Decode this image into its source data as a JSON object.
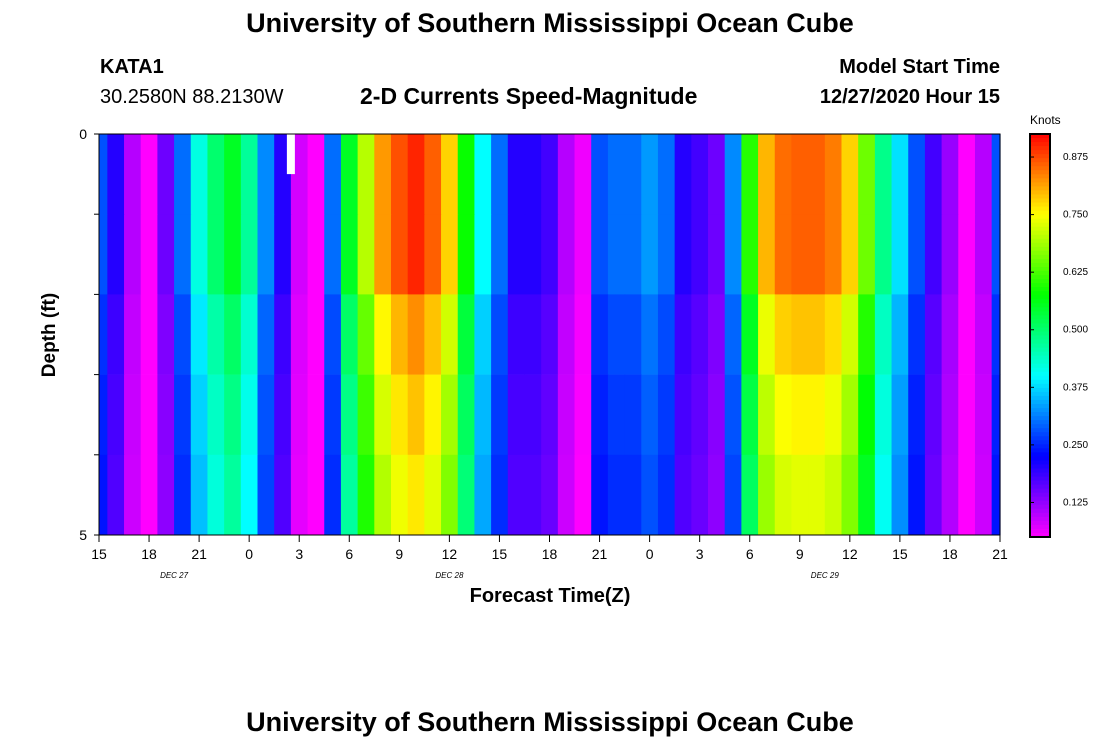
{
  "header": {
    "title": "University of Southern Mississippi Ocean Cube",
    "station": "KATA1",
    "coordinates": "30.2580N 88.2130W",
    "subtitle": "2-D Currents Speed-Magnitude",
    "model_start_label": "Model Start Time",
    "model_start_value": "12/27/2020 Hour 15"
  },
  "footer": {
    "title": "University of Southern Mississippi Ocean Cube"
  },
  "chart_data": {
    "type": "heatmap",
    "title": "2-D Currents Speed-Magnitude",
    "xlabel": "Forecast Time(Z)",
    "ylabel": "Depth (ft)",
    "x_tick_labels": [
      "15",
      "18",
      "21",
      "0",
      "3",
      "6",
      "9",
      "12",
      "15",
      "18",
      "21",
      "0",
      "3",
      "6",
      "9",
      "12",
      "15",
      "18",
      "21"
    ],
    "x_hours": [
      15,
      18,
      21,
      24,
      27,
      30,
      33,
      36,
      39,
      42,
      45,
      48,
      51,
      54,
      57,
      60,
      63,
      66,
      69
    ],
    "date_labels": [
      {
        "hour": 19.5,
        "text": "DEC 27"
      },
      {
        "hour": 36,
        "text": "DEC 28"
      },
      {
        "hour": 58.5,
        "text": "DEC 29"
      }
    ],
    "y_tick_labels": [
      "0",
      "5"
    ],
    "ylim": [
      0,
      5
    ],
    "depth_layers": [
      0,
      1,
      2,
      3,
      4
    ],
    "colorbar": {
      "unit_label": "Knots",
      "min": 0.05,
      "max": 0.925,
      "tick_values": [
        0.125,
        0.25,
        0.375,
        0.5,
        0.625,
        0.75,
        0.875
      ],
      "tick_labels": [
        "0.125",
        "0.250",
        "0.375",
        "0.500",
        "0.625",
        "0.750",
        "0.875"
      ]
    },
    "profile_hours": [
      15,
      16,
      17,
      18,
      19,
      20,
      21,
      22,
      23,
      24,
      25,
      26,
      27,
      28,
      29,
      30,
      31,
      32,
      33,
      34,
      35,
      36,
      37,
      38,
      39,
      40,
      41,
      42,
      43,
      44,
      45,
      46,
      47,
      48,
      49,
      50,
      51,
      52,
      53,
      54,
      55,
      56,
      57,
      58,
      59,
      60,
      61,
      62,
      63,
      64,
      65,
      66,
      67,
      68,
      69
    ],
    "profile_speed": [
      0.28,
      0.2,
      0.1,
      0.05,
      0.15,
      0.3,
      0.42,
      0.5,
      0.55,
      0.47,
      0.32,
      0.2,
      0.08,
      0.05,
      0.3,
      0.55,
      0.7,
      0.82,
      0.87,
      0.9,
      0.86,
      0.78,
      0.58,
      0.4,
      0.3,
      0.2,
      0.2,
      0.18,
      0.1,
      0.06,
      0.28,
      0.3,
      0.3,
      0.33,
      0.3,
      0.2,
      0.18,
      0.15,
      0.32,
      0.6,
      0.8,
      0.85,
      0.86,
      0.86,
      0.84,
      0.78,
      0.65,
      0.48,
      0.38,
      0.28,
      0.18,
      0.12,
      0.05,
      0.1,
      0.28
    ],
    "depth_factor": [
      1.0,
      1.0,
      0.92,
      0.88,
      0.85
    ],
    "missing_cell": {
      "hour": 26.5,
      "depth_layer": 0
    }
  }
}
